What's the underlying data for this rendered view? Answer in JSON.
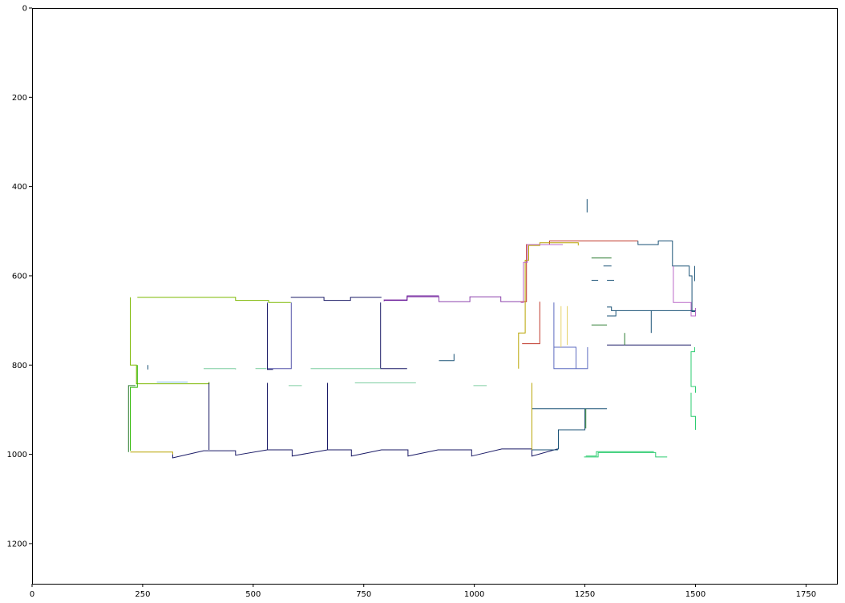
{
  "chart_data": {
    "type": "line",
    "title": "",
    "xlabel": "",
    "ylabel": "",
    "xlim": [
      0,
      1820
    ],
    "ylim": [
      1290,
      0
    ],
    "grid": false,
    "x_ticks": [
      "0",
      "250",
      "500",
      "750",
      "1000",
      "1250",
      "1500",
      "1750"
    ],
    "y_ticks": [
      "0",
      "200",
      "400",
      "600",
      "800",
      "1000",
      "1200"
    ],
    "series": [
      {
        "color": "#7cb800",
        "points": [
          [
            238,
            648
          ],
          [
            460,
            648
          ],
          [
            460,
            655
          ],
          [
            535,
            655
          ],
          [
            535,
            660
          ],
          [
            585,
            660
          ]
        ]
      },
      {
        "color": "#7cb800",
        "points": [
          [
            222,
            648
          ],
          [
            222,
            800
          ],
          [
            236,
            800
          ],
          [
            236,
            842
          ],
          [
            336,
            842
          ],
          [
            400,
            842
          ],
          [
            400,
            838
          ]
        ]
      },
      {
        "color": "#2bb800",
        "points": [
          [
            222,
            992
          ],
          [
            222,
            850
          ],
          [
            238,
            850
          ],
          [
            238,
            800
          ]
        ]
      },
      {
        "color": "#2e7d32",
        "points": [
          [
            218,
            995
          ],
          [
            218,
            846
          ],
          [
            234,
            846
          ]
        ]
      },
      {
        "color": "#1a1a66",
        "points": [
          [
            318,
            1000
          ],
          [
            318,
            1008
          ],
          [
            388,
            992
          ],
          [
            460,
            992
          ],
          [
            460,
            1002
          ],
          [
            532,
            990
          ],
          [
            588,
            990
          ],
          [
            588,
            1004
          ],
          [
            668,
            990
          ],
          [
            722,
            990
          ],
          [
            722,
            1004
          ],
          [
            790,
            990
          ],
          [
            850,
            990
          ],
          [
            850,
            1004
          ],
          [
            918,
            990
          ],
          [
            994,
            990
          ],
          [
            994,
            1004
          ],
          [
            1062,
            988
          ],
          [
            1130,
            988
          ],
          [
            1130,
            1004
          ],
          [
            1188,
            988
          ]
        ]
      },
      {
        "color": "#b8a400",
        "points": [
          [
            222,
            995
          ],
          [
            318,
            995
          ],
          [
            318,
            1000
          ]
        ]
      },
      {
        "color": "#8e44ad",
        "points": [
          [
            796,
            657
          ],
          [
            796,
            654
          ],
          [
            848,
            654
          ],
          [
            848,
            647
          ],
          [
            920,
            647
          ],
          [
            920,
            658
          ],
          [
            990,
            658
          ],
          [
            990,
            647
          ],
          [
            1060,
            647
          ],
          [
            1060,
            658
          ],
          [
            1104,
            658
          ]
        ]
      },
      {
        "color": "#6a1b9a",
        "points": [
          [
            796,
            655
          ],
          [
            848,
            655
          ],
          [
            848,
            645
          ],
          [
            920,
            645
          ]
        ]
      },
      {
        "color": "#1a1a66",
        "points": [
          [
            585,
            648
          ],
          [
            660,
            648
          ],
          [
            660,
            655
          ],
          [
            720,
            655
          ],
          [
            720,
            648
          ],
          [
            790,
            648
          ]
        ]
      },
      {
        "color": "#5555aa",
        "points": [
          [
            586,
            660
          ],
          [
            586,
            808
          ],
          [
            532,
            808
          ],
          [
            532,
            660
          ]
        ]
      },
      {
        "color": "#1a1a66",
        "points": [
          [
            532,
            662
          ],
          [
            532,
            810
          ],
          [
            545,
            810
          ]
        ]
      },
      {
        "color": "#1a1a66",
        "points": [
          [
            788,
            660
          ],
          [
            788,
            808
          ],
          [
            848,
            808
          ]
        ]
      },
      {
        "color": "#c0392b",
        "points": [
          [
            1104,
            658
          ],
          [
            1118,
            658
          ],
          [
            1118,
            530
          ],
          [
            1170,
            530
          ],
          [
            1170,
            522
          ],
          [
            1300,
            522
          ],
          [
            1370,
            522
          ]
        ]
      },
      {
        "color": "#b8a400",
        "points": [
          [
            1100,
            808
          ],
          [
            1100,
            728
          ],
          [
            1115,
            728
          ],
          [
            1115,
            565
          ],
          [
            1123,
            565
          ],
          [
            1123,
            532
          ],
          [
            1148,
            532
          ],
          [
            1148,
            526
          ],
          [
            1235,
            526
          ],
          [
            1235,
            532
          ]
        ]
      },
      {
        "color": "#ba68c8",
        "points": [
          [
            1106,
            658
          ],
          [
            1106,
            660
          ],
          [
            1111,
            660
          ],
          [
            1111,
            570
          ],
          [
            1120,
            570
          ],
          [
            1120,
            530
          ],
          [
            1200,
            530
          ]
        ]
      },
      {
        "color": "#c0392b",
        "points": [
          [
            1108,
            752
          ],
          [
            1148,
            752
          ],
          [
            1148,
            658
          ]
        ]
      },
      {
        "color": "#5c6bc0",
        "points": [
          [
            1180,
            660
          ],
          [
            1180,
            808
          ],
          [
            1256,
            808
          ],
          [
            1256,
            760
          ]
        ]
      },
      {
        "color": "#5c6bc0",
        "points": [
          [
            1180,
            760
          ],
          [
            1230,
            760
          ],
          [
            1230,
            808
          ]
        ]
      },
      {
        "color": "#e6d26a",
        "points": [
          [
            1196,
            668
          ],
          [
            1196,
            760
          ]
        ]
      },
      {
        "color": "#e6d26a",
        "points": [
          [
            1210,
            668
          ],
          [
            1210,
            755
          ]
        ]
      },
      {
        "color": "#1a5276",
        "points": [
          [
            1255,
            428
          ],
          [
            1255,
            458
          ]
        ]
      },
      {
        "color": "#1a5276",
        "points": [
          [
            1370,
            522
          ],
          [
            1370,
            530
          ],
          [
            1416,
            530
          ],
          [
            1416,
            522
          ],
          [
            1448,
            522
          ],
          [
            1448,
            578
          ],
          [
            1486,
            578
          ],
          [
            1486,
            600
          ],
          [
            1492,
            600
          ],
          [
            1492,
            680
          ],
          [
            1500,
            680
          ]
        ]
      },
      {
        "color": "#ba68c8",
        "points": [
          [
            1450,
            578
          ],
          [
            1450,
            660
          ],
          [
            1490,
            660
          ],
          [
            1490,
            690
          ],
          [
            1500,
            690
          ],
          [
            1500,
            672
          ]
        ]
      },
      {
        "color": "#1a5276",
        "points": [
          [
            1498,
            578
          ],
          [
            1498,
            612
          ]
        ]
      },
      {
        "color": "#2e7d32",
        "points": [
          [
            1265,
            560
          ],
          [
            1310,
            560
          ]
        ]
      },
      {
        "color": "#1a5276",
        "points": [
          [
            1292,
            578
          ],
          [
            1310,
            578
          ]
        ]
      },
      {
        "color": "#1a5276",
        "points": [
          [
            1265,
            610
          ],
          [
            1280,
            610
          ]
        ]
      },
      {
        "color": "#1a5276",
        "points": [
          [
            1300,
            610
          ],
          [
            1316,
            610
          ]
        ]
      },
      {
        "color": "#1a5276",
        "points": [
          [
            1300,
            670
          ],
          [
            1310,
            670
          ],
          [
            1310,
            678
          ],
          [
            1500,
            678
          ]
        ]
      },
      {
        "color": "#1a5276",
        "points": [
          [
            1300,
            690
          ],
          [
            1320,
            690
          ],
          [
            1320,
            678
          ]
        ]
      },
      {
        "color": "#1a5276",
        "points": [
          [
            1400,
            678
          ],
          [
            1400,
            728
          ]
        ]
      },
      {
        "color": "#2e7d32",
        "points": [
          [
            1265,
            710
          ],
          [
            1300,
            710
          ]
        ]
      },
      {
        "color": "#1a1a66",
        "points": [
          [
            1300,
            755
          ],
          [
            1490,
            755
          ]
        ]
      },
      {
        "color": "#2e7d32",
        "points": [
          [
            1340,
            728
          ],
          [
            1340,
            755
          ]
        ]
      },
      {
        "color": "#2ecc71",
        "points": [
          [
            1498,
            760
          ],
          [
            1498,
            770
          ],
          [
            1490,
            770
          ],
          [
            1490,
            848
          ],
          [
            1500,
            848
          ],
          [
            1500,
            862
          ]
        ]
      },
      {
        "color": "#2ecc71",
        "points": [
          [
            1490,
            862
          ],
          [
            1490,
            915
          ],
          [
            1500,
            915
          ],
          [
            1500,
            945
          ]
        ]
      },
      {
        "color": "#1a5276",
        "points": [
          [
            1130,
            898
          ],
          [
            1300,
            898
          ]
        ]
      },
      {
        "color": "#1a5276",
        "points": [
          [
            1130,
            990
          ],
          [
            1188,
            990
          ],
          [
            1188,
            988
          ],
          [
            1190,
            988
          ],
          [
            1190,
            945
          ],
          [
            1250,
            945
          ],
          [
            1250,
            898
          ]
        ]
      },
      {
        "color": "#2e7d32",
        "points": [
          [
            1252,
            898
          ],
          [
            1252,
            942
          ]
        ]
      },
      {
        "color": "#b8a400",
        "points": [
          [
            1130,
            840
          ],
          [
            1130,
            990
          ]
        ]
      },
      {
        "color": "#1a1a66",
        "points": [
          [
            400,
            840
          ],
          [
            400,
            990
          ]
        ]
      },
      {
        "color": "#1a1a66",
        "points": [
          [
            532,
            840
          ],
          [
            532,
            990
          ]
        ]
      },
      {
        "color": "#1a1a66",
        "points": [
          [
            668,
            840
          ],
          [
            668,
            990
          ]
        ]
      },
      {
        "color": "#2ecc71",
        "points": [
          [
            1248,
            1006
          ],
          [
            1280,
            1006
          ],
          [
            1280,
            996
          ],
          [
            1410,
            996
          ],
          [
            1410,
            1006
          ],
          [
            1436,
            1006
          ]
        ]
      },
      {
        "color": "#2ecc71",
        "points": [
          [
            1252,
            1004
          ],
          [
            1276,
            1004
          ],
          [
            1276,
            994
          ],
          [
            1406,
            994
          ]
        ]
      },
      {
        "color": "#7dcea0",
        "points": [
          [
            388,
            808
          ],
          [
            460,
            808
          ],
          [
            460,
            810
          ]
        ]
      },
      {
        "color": "#7dcea0",
        "points": [
          [
            505,
            808
          ],
          [
            530,
            808
          ]
        ]
      },
      {
        "color": "#7dcea0",
        "points": [
          [
            630,
            808
          ],
          [
            788,
            808
          ]
        ]
      },
      {
        "color": "#7dcea0",
        "points": [
          [
            730,
            840
          ],
          [
            868,
            840
          ]
        ]
      },
      {
        "color": "#7dcea0",
        "points": [
          [
            580,
            846
          ],
          [
            610,
            846
          ]
        ]
      },
      {
        "color": "#7dcea0",
        "points": [
          [
            998,
            846
          ],
          [
            1028,
            846
          ]
        ]
      },
      {
        "color": "#1a5276",
        "points": [
          [
            920,
            790
          ],
          [
            954,
            790
          ],
          [
            954,
            775
          ]
        ]
      },
      {
        "color": "#85c1e9",
        "points": [
          [
            282,
            838
          ],
          [
            352,
            838
          ]
        ]
      },
      {
        "color": "#1a5276",
        "points": [
          [
            262,
            810
          ],
          [
            262,
            800
          ]
        ]
      }
    ]
  }
}
